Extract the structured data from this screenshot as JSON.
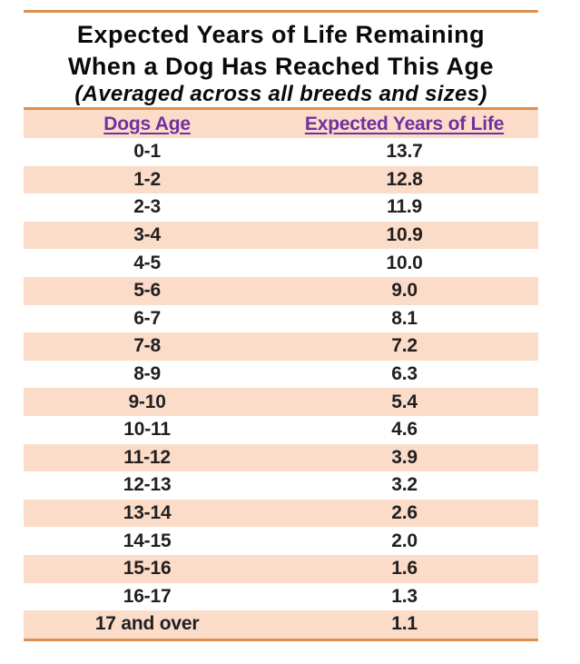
{
  "title": {
    "line1": "Expected Years of Life Remaining",
    "line2": "When a Dog Has Reached This Age",
    "subtitle": "(Averaged across all breeds and sizes)"
  },
  "table": {
    "columns": [
      "Dogs Age",
      "Expected Years of Life"
    ],
    "rows": [
      {
        "age": "0-1",
        "years": "13.7"
      },
      {
        "age": "1-2",
        "years": "12.8"
      },
      {
        "age": "2-3",
        "years": "11.9"
      },
      {
        "age": "3-4",
        "years": "10.9"
      },
      {
        "age": "4-5",
        "years": "10.0"
      },
      {
        "age": "5-6",
        "years": "9.0"
      },
      {
        "age": "6-7",
        "years": "8.1"
      },
      {
        "age": "7-8",
        "years": "7.2"
      },
      {
        "age": "8-9",
        "years": "6.3"
      },
      {
        "age": "9-10",
        "years": "5.4"
      },
      {
        "age": "10-11",
        "years": "4.6"
      },
      {
        "age": "11-12",
        "years": "3.9"
      },
      {
        "age": "12-13",
        "years": "3.2"
      },
      {
        "age": "13-14",
        "years": "2.6"
      },
      {
        "age": "14-15",
        "years": "2.0"
      },
      {
        "age": "15-16",
        "years": "1.6"
      },
      {
        "age": "16-17",
        "years": "1.3"
      },
      {
        "age": "17 and over",
        "years": "1.1"
      }
    ]
  },
  "colors": {
    "row_highlight": "#FADCC9",
    "divider_orange": "#DE8F4F",
    "header_link_purple": "#7030A0",
    "body_text": "#231F20"
  },
  "chart_data": {
    "type": "table",
    "title": "Expected Years of Life Remaining When a Dog Has Reached This Age",
    "subtitle": "(Averaged across all breeds and sizes)",
    "columns": [
      "Dogs Age",
      "Expected Years of Life"
    ],
    "categories": [
      "0-1",
      "1-2",
      "2-3",
      "3-4",
      "4-5",
      "5-6",
      "6-7",
      "7-8",
      "8-9",
      "9-10",
      "10-11",
      "11-12",
      "12-13",
      "13-14",
      "14-15",
      "15-16",
      "16-17",
      "17 and over"
    ],
    "values": [
      13.7,
      12.8,
      11.9,
      10.9,
      10.0,
      9.0,
      8.1,
      7.2,
      6.3,
      5.4,
      4.6,
      3.9,
      3.2,
      2.6,
      2.0,
      1.6,
      1.3,
      1.1
    ]
  }
}
